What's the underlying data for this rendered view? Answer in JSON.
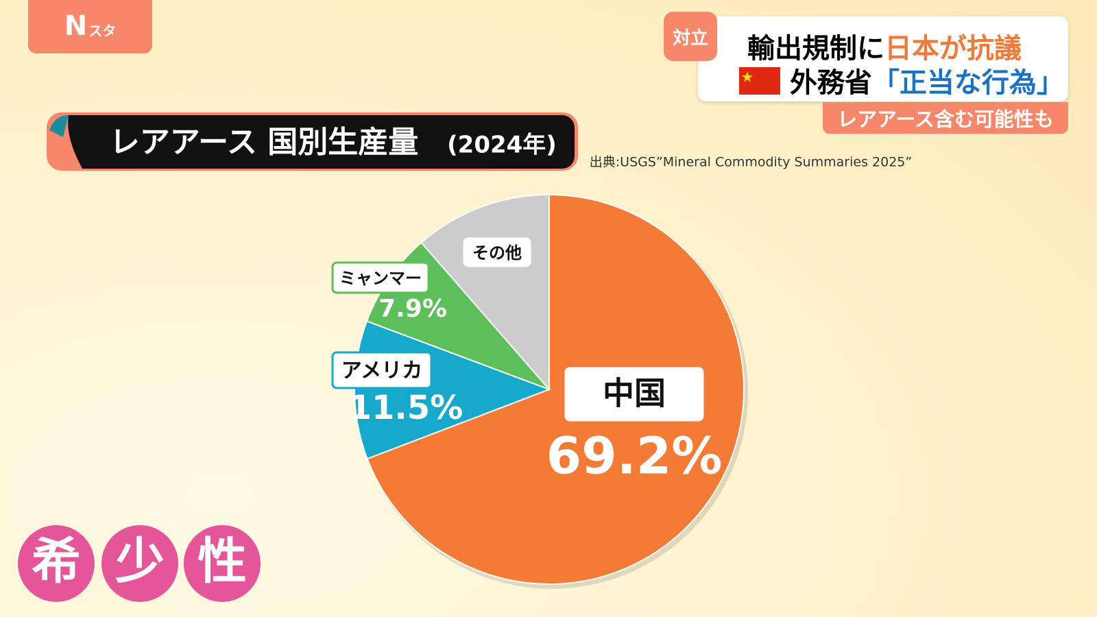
{
  "logo": {
    "mark": "N",
    "name": "スタ"
  },
  "headline": {
    "tag": "対立",
    "line1": [
      "輸出規制に",
      "日本が抗議"
    ],
    "line2": [
      "外務省",
      "「正当な行為」"
    ],
    "sub": "レアアース含む可能性も"
  },
  "chart_data": {
    "type": "pie",
    "title": "レアアース 国別生産量",
    "subtitle": "(2024年)",
    "source": "出典:USGS”Mineral Commodity Summaries 2025”",
    "categories": [
      "中国",
      "アメリカ",
      "ミャンマー",
      "その他"
    ],
    "values": [
      69.2,
      11.5,
      7.9,
      11.4
    ],
    "value_labels": [
      "69.2%",
      "11.5%",
      "7.9%",
      null
    ],
    "colors": [
      "#f47b36",
      "#17a9cc",
      "#5cbf5a",
      "#cccccc"
    ]
  },
  "caption": [
    "希",
    "少",
    "性"
  ]
}
